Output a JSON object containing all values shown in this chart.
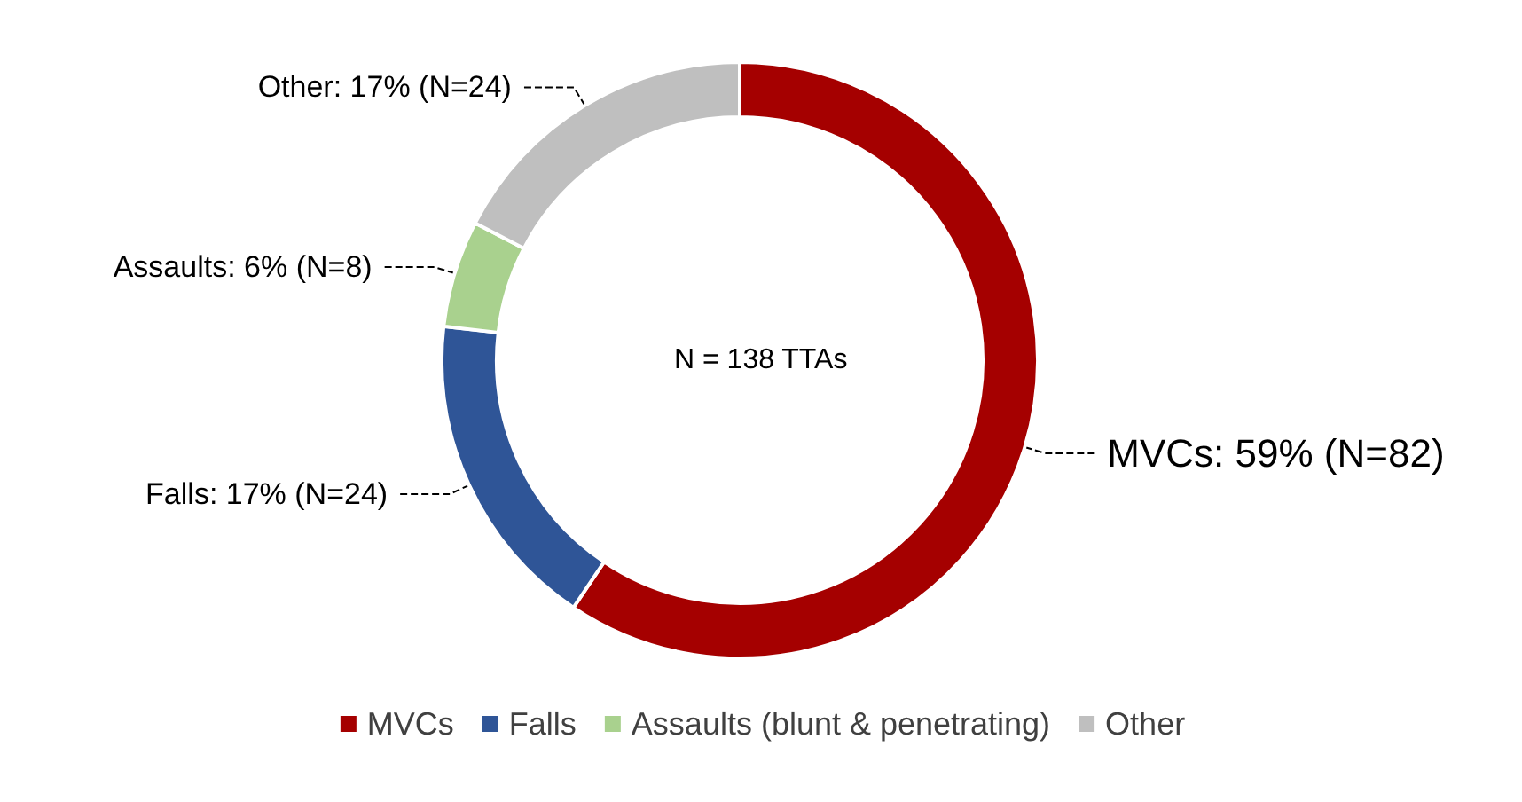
{
  "chart_data": {
    "type": "donut",
    "categories": [
      "MVCs",
      "Falls",
      "Assaults (blunt & penetrating)",
      "Other"
    ],
    "values": [
      82,
      24,
      8,
      24
    ],
    "colors": [
      "#a50000",
      "#2f5597",
      "#a9d18e",
      "#bfbfbf"
    ],
    "value_labels": [
      "MVCs: 59% (N=82)",
      "Falls: 17% (N=24)",
      "Assaults: 6% (N=8)",
      "Other: 17% (N=24)"
    ],
    "annotations": [
      "N = 138 TTAs"
    ],
    "legend": "bottom"
  }
}
